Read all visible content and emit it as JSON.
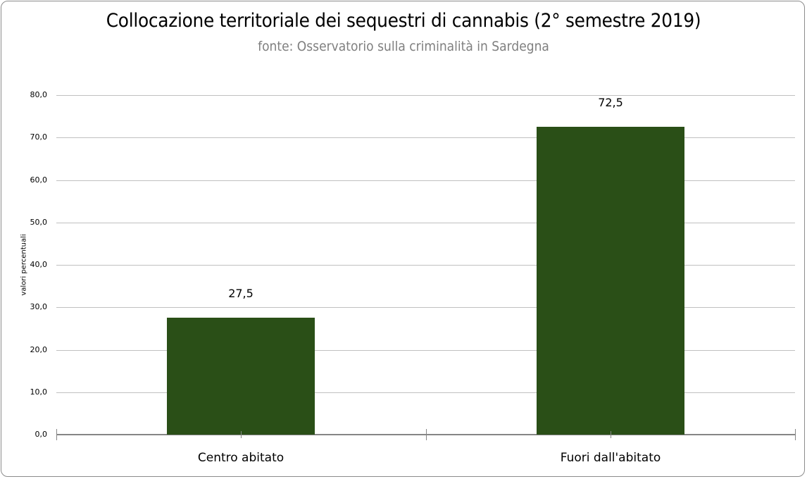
{
  "chart_data": {
    "type": "bar",
    "title": "Collocazione territoriale dei sequestri di cannabis (2° semestre  2019)",
    "subtitle": "fonte: Osservatorio sulla criminalità in Sardegna",
    "xlabel": "",
    "ylabel": "valori percentuali",
    "categories": [
      "Centro abitato",
      "Fuori dall'abitato"
    ],
    "values": [
      27.5,
      72.5
    ],
    "data_labels": [
      "27,5",
      "72,5"
    ],
    "ylim": [
      0,
      80
    ],
    "yticks": [
      "0,0",
      "10,0",
      "20,0",
      "30,0",
      "40,0",
      "50,0",
      "60,0",
      "70,0",
      "80,0"
    ],
    "grid": true,
    "legend": null,
    "bar_color": "#2a4f17"
  }
}
